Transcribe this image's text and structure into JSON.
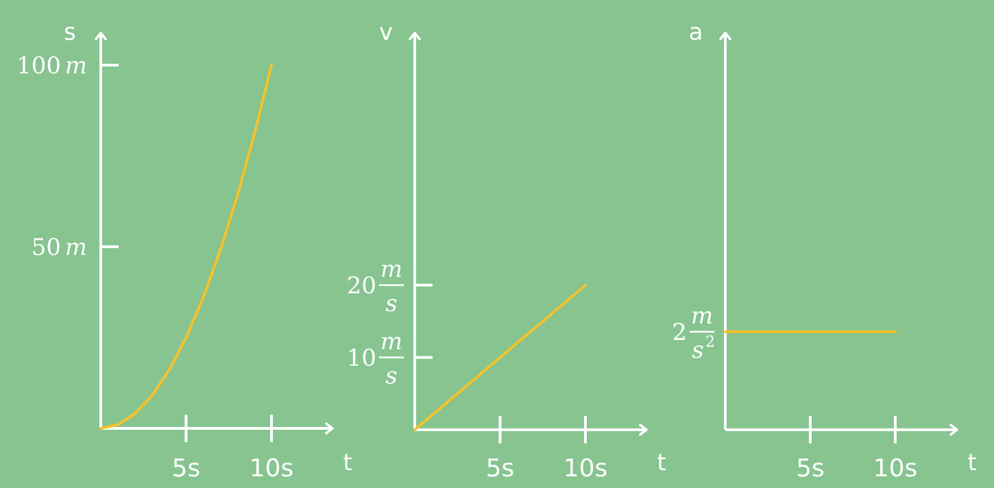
{
  "chart_data": [
    {
      "type": "line",
      "title": "",
      "xlabel": "t",
      "ylabel": "s",
      "x_ticks": [
        {
          "value": 5,
          "label": "5s"
        },
        {
          "value": 10,
          "label": "10s"
        }
      ],
      "y_ticks": [
        {
          "value": 50,
          "number": "50",
          "unit": "m"
        },
        {
          "value": 100,
          "number": "100",
          "unit": "m"
        }
      ],
      "series": [
        {
          "x": [
            0,
            1,
            2,
            3,
            4,
            5,
            6,
            7,
            8,
            9,
            10
          ],
          "y": [
            0,
            1,
            4,
            9,
            16,
            25,
            36,
            49,
            64,
            81,
            100
          ]
        }
      ],
      "color": "#f5c22b",
      "grid": false
    },
    {
      "type": "line",
      "title": "",
      "xlabel": "t",
      "ylabel": "v",
      "x_ticks": [
        {
          "value": 5,
          "label": "5s"
        },
        {
          "value": 10,
          "label": "10s"
        }
      ],
      "y_ticks": [
        {
          "value": 10,
          "number": "10",
          "num_unit": "m",
          "den_unit": "s"
        },
        {
          "value": 20,
          "number": "20",
          "num_unit": "m",
          "den_unit": "s"
        }
      ],
      "series": [
        {
          "x": [
            0,
            10
          ],
          "y": [
            0,
            20
          ]
        }
      ],
      "color": "#f5c22b",
      "grid": false
    },
    {
      "type": "line",
      "title": "",
      "xlabel": "t",
      "ylabel": "a",
      "x_ticks": [
        {
          "value": 5,
          "label": "5s"
        },
        {
          "value": 10,
          "label": "10s"
        }
      ],
      "y_ticks": [
        {
          "value": 2,
          "number": "2",
          "num_unit": "m",
          "den_unit": "s",
          "den_exp": "2"
        }
      ],
      "series": [
        {
          "x": [
            0,
            10
          ],
          "y": [
            2,
            2
          ]
        }
      ],
      "color": "#f5c22b",
      "grid": false
    }
  ]
}
